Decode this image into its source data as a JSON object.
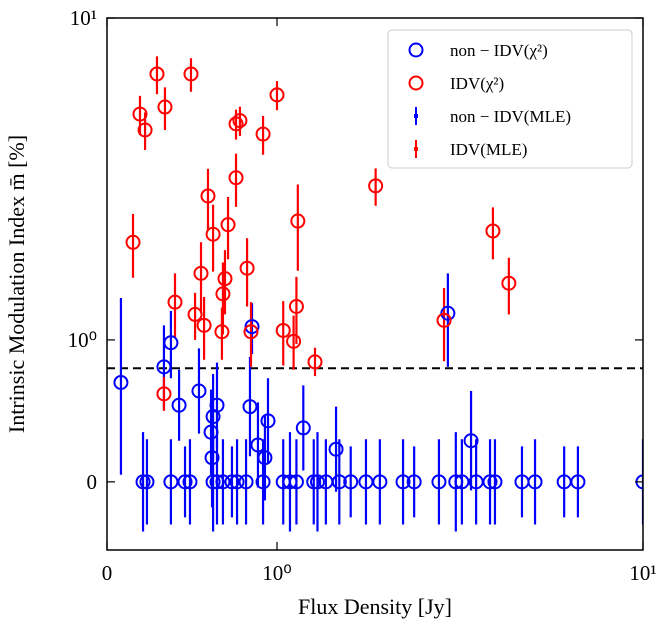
{
  "chart_data": {
    "type": "errorbar-scatter",
    "xlabel": "Flux Density [Jy]",
    "ylabel": "Intrinsic Modulation Index m̄ [%]",
    "xscale": "symlog",
    "yscale": "symlog",
    "linthresh": 1,
    "xlim": [
      0,
      10
    ],
    "ylim": [
      -0.48,
      10
    ],
    "xticks": [
      0,
      {
        "value": 1,
        "label": "10⁰"
      },
      {
        "value": 10,
        "label": "10¹"
      }
    ],
    "yticks": [
      0,
      {
        "value": 1,
        "label": "10⁰"
      },
      {
        "value": 10,
        "label": "10¹"
      }
    ],
    "hline": 0.8,
    "legend": "upper right",
    "series": [
      {
        "name": "non − IDV(χ²)",
        "error_name": "non − IDV(MLE)",
        "color": "#0000ff",
        "x": [
          0.082,
          0.335,
          0.376,
          0.424,
          0.541,
          0.612,
          0.618,
          0.624,
          0.647,
          0.841,
          0.853,
          0.888,
          0.929,
          0.947,
          1.18,
          1.45,
          2.93,
          3.39,
          0.212,
          0.235,
          0.376,
          0.459,
          0.488,
          0.624,
          0.647,
          0.682,
          0.735,
          0.765,
          0.818,
          0.918,
          1.04,
          1.085,
          1.13,
          1.26,
          1.29,
          1.36,
          1.48,
          1.59,
          1.75,
          1.91,
          2.21,
          2.37,
          2.77,
          3.08,
          3.2,
          3.5,
          3.82,
          3.94,
          4.67,
          5.07,
          6.09,
          6.64,
          10
        ],
        "values": [
          0.7,
          0.81,
          0.98,
          0.54,
          0.64,
          0.35,
          0.17,
          0.46,
          0.54,
          0.53,
          1.1,
          0.26,
          0.17,
          0.43,
          0.38,
          0.23,
          1.21,
          0.29,
          0,
          0,
          0,
          0,
          0,
          0,
          0,
          0,
          0,
          0,
          0,
          0,
          0,
          0,
          0,
          0,
          0,
          0,
          0,
          0,
          0,
          0,
          0,
          0,
          0,
          0,
          0,
          0,
          0,
          0,
          0,
          0,
          0,
          0,
          0
        ],
        "errors": [
          0.65,
          0.3,
          0.25,
          0.25,
          0.3,
          0.3,
          0.35,
          0.3,
          0.3,
          0.35,
          0.2,
          0.3,
          0.3,
          0.3,
          0.3,
          0.3,
          0.4,
          0.35,
          0.35,
          0.3,
          0.3,
          0.25,
          0.3,
          0.35,
          0.3,
          0.3,
          0.25,
          0.3,
          0.3,
          0.3,
          0.3,
          0.35,
          0.3,
          0.3,
          0.35,
          0.3,
          0.3,
          0.25,
          0.3,
          0.3,
          0.3,
          0.25,
          0.3,
          0.35,
          0.3,
          0.3,
          0.3,
          0.3,
          0.25,
          0.3,
          0.25,
          0.25,
          0.3
        ]
      },
      {
        "name": "IDV(χ²)",
        "error_name": "IDV(MLE)",
        "color": "#ff0000",
        "x": [
          0.153,
          0.194,
          0.224,
          0.294,
          0.341,
          0.335,
          0.4,
          0.494,
          0.518,
          0.553,
          0.571,
          0.594,
          0.624,
          0.676,
          0.682,
          0.694,
          0.712,
          0.759,
          0.759,
          0.782,
          0.824,
          0.847,
          0.918,
          1.0,
          1.04,
          1.11,
          1.13,
          1.14,
          1.27,
          1.86,
          2.86,
          3.89,
          4.3
        ],
        "values": [
          2.01,
          5.03,
          4.49,
          6.7,
          5.29,
          0.62,
          1.31,
          6.7,
          1.2,
          1.61,
          1.11,
          2.8,
          2.13,
          1.06,
          1.39,
          1.55,
          2.28,
          3.19,
          4.69,
          4.8,
          1.67,
          1.06,
          4.36,
          5.77,
          1.07,
          0.99,
          1.27,
          2.34,
          0.845,
          3.01,
          1.15,
          2.18,
          1.5
        ],
        "errors": [
          0.45,
          0.7,
          0.6,
          0.9,
          0.8,
          0.12,
          0.3,
          0.8,
          0.2,
          0.4,
          0.25,
          0.6,
          0.5,
          0.2,
          0.35,
          0.35,
          0.5,
          0.6,
          0.5,
          0.5,
          0.4,
          0.25,
          0.6,
          0.6,
          0.25,
          0.2,
          0.3,
          0.7,
          0.1,
          0.4,
          0.3,
          0.4,
          0.3
        ]
      }
    ]
  }
}
